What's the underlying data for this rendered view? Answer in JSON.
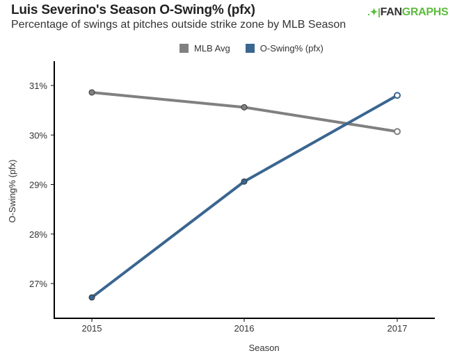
{
  "header": {
    "title": "Luis Severino's Season O-Swing% (pfx)",
    "subtitle": "Percentage of swings at pitches outside strike zone by MLB Season",
    "logo": {
      "mark": ".✦|",
      "fan": "FAN",
      "graphs": "GRAPHS"
    }
  },
  "chart_data": {
    "type": "line",
    "title": "Luis Severino's Season O-Swing% (pfx)",
    "subtitle": "Percentage of swings at pitches outside strike zone by MLB Season",
    "xlabel": "Season",
    "ylabel": "O-Swing% (pfx)",
    "categories": [
      "2015",
      "2016",
      "2017"
    ],
    "ylim": [
      26.3,
      31.3
    ],
    "yticks": [
      27,
      28,
      29,
      30,
      31
    ],
    "ytick_labels": [
      "27%",
      "28%",
      "29%",
      "30%",
      "31%"
    ],
    "grid": false,
    "legend_position": "top-center",
    "series": [
      {
        "name": "MLB Avg",
        "color": "#808080",
        "values": [
          30.86,
          30.56,
          30.07
        ]
      },
      {
        "name": "O-Swing% (pfx)",
        "color": "#3a6690",
        "values": [
          26.72,
          29.06,
          30.8
        ]
      }
    ]
  }
}
